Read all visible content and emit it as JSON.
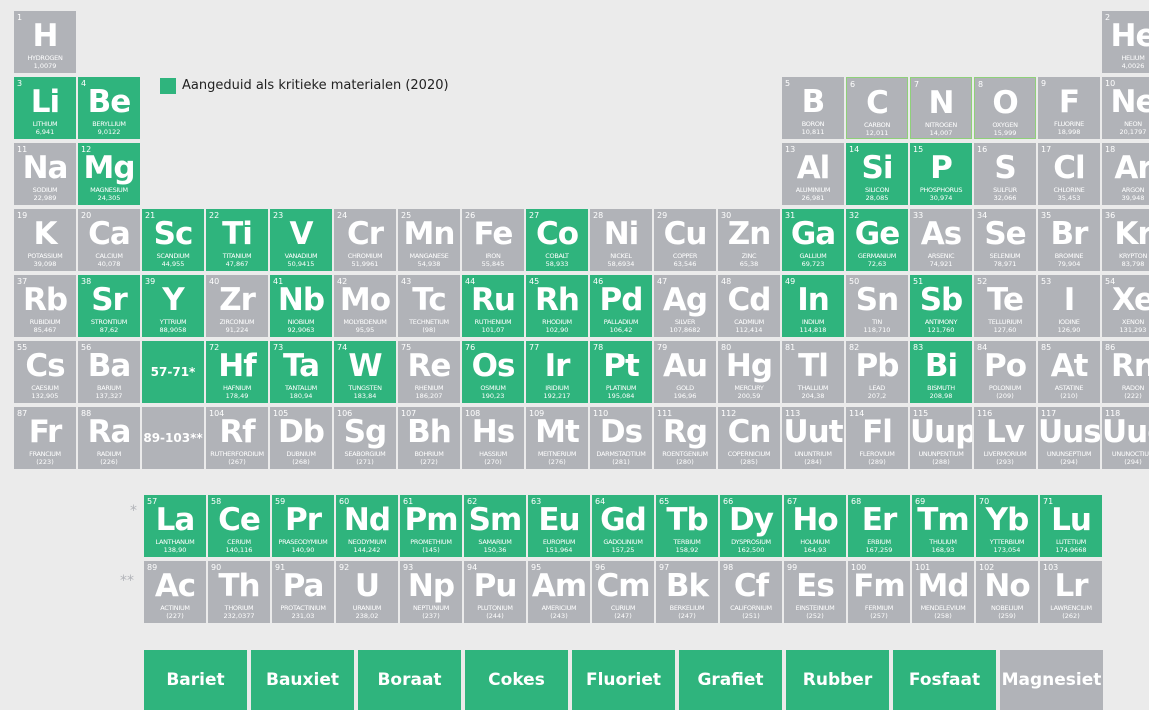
{
  "legend": "Aangeduid als kritieke materialen (2020)",
  "lanthanide_label": "57-71*",
  "actinide_label": "89-103**",
  "lanthanide_star": "*",
  "actinide_star": "**",
  "critical": [
    3,
    4,
    12,
    14,
    15,
    21,
    22,
    23,
    27,
    31,
    32,
    38,
    39,
    41,
    44,
    45,
    46,
    49,
    51,
    72,
    73,
    74,
    76,
    77,
    78,
    83,
    57,
    58,
    59,
    60,
    61,
    62,
    63,
    64,
    65,
    66,
    67,
    68,
    69,
    70,
    71
  ],
  "outlined": [
    6,
    7,
    8
  ],
  "elements": [
    [
      1,
      "H",
      "HYDROGEN",
      "1,0079"
    ],
    [
      2,
      "He",
      "HELIUM",
      "4,0026"
    ],
    [
      3,
      "Li",
      "LITHIUM",
      "6,941"
    ],
    [
      4,
      "Be",
      "BERYLLIUM",
      "9,0122"
    ],
    [
      5,
      "B",
      "BORON",
      "10,811"
    ],
    [
      6,
      "C",
      "CARBON",
      "12,011"
    ],
    [
      7,
      "N",
      "NITROGEN",
      "14,007"
    ],
    [
      8,
      "O",
      "OXYGEN",
      "15,999"
    ],
    [
      9,
      "F",
      "FLUORINE",
      "18,998"
    ],
    [
      10,
      "Ne",
      "NEON",
      "20,1797"
    ],
    [
      11,
      "Na",
      "SODIUM",
      "22,989"
    ],
    [
      12,
      "Mg",
      "MAGNESIUM",
      "24,305"
    ],
    [
      13,
      "Al",
      "ALUMINIUM",
      "26,981"
    ],
    [
      14,
      "Si",
      "SILICON",
      "28,085"
    ],
    [
      15,
      "P",
      "PHOSPHORUS",
      "30,974"
    ],
    [
      16,
      "S",
      "SULFUR",
      "32,066"
    ],
    [
      17,
      "Cl",
      "CHLORINE",
      "35,453"
    ],
    [
      18,
      "Ar",
      "ARGON",
      "39,948"
    ],
    [
      19,
      "K",
      "POTASSIUM",
      "39,098"
    ],
    [
      20,
      "Ca",
      "CALCIUM",
      "40,078"
    ],
    [
      21,
      "Sc",
      "SCANDIUM",
      "44,955"
    ],
    [
      22,
      "Ti",
      "TITANIUM",
      "47,867"
    ],
    [
      23,
      "V",
      "VANADIUM",
      "50,9415"
    ],
    [
      24,
      "Cr",
      "CHROMIUM",
      "51,9961"
    ],
    [
      25,
      "Mn",
      "MANGANESE",
      "54,938"
    ],
    [
      26,
      "Fe",
      "IRON",
      "55,845"
    ],
    [
      27,
      "Co",
      "COBALT",
      "58,933"
    ],
    [
      28,
      "Ni",
      "NICKEL",
      "58,6934"
    ],
    [
      29,
      "Cu",
      "COPPER",
      "63,546"
    ],
    [
      30,
      "Zn",
      "ZINC",
      "65,38"
    ],
    [
      31,
      "Ga",
      "GALLIUM",
      "69,723"
    ],
    [
      32,
      "Ge",
      "GERMANIUM",
      "72,63"
    ],
    [
      33,
      "As",
      "ARSENIC",
      "74,921"
    ],
    [
      34,
      "Se",
      "SELENIUM",
      "78,971"
    ],
    [
      35,
      "Br",
      "BROMINE",
      "79,904"
    ],
    [
      36,
      "Kr",
      "KRYPTON",
      "83,798"
    ],
    [
      37,
      "Rb",
      "RUBIDIUM",
      "85,467"
    ],
    [
      38,
      "Sr",
      "STRONTIUM",
      "87,62"
    ],
    [
      39,
      "Y",
      "YTTRIUM",
      "88,9058"
    ],
    [
      40,
      "Zr",
      "ZIRCONIUM",
      "91,224"
    ],
    [
      41,
      "Nb",
      "NIOBIUM",
      "92,9063"
    ],
    [
      42,
      "Mo",
      "MOLYBDENUM",
      "95,95"
    ],
    [
      43,
      "Tc",
      "TECHNETIUM",
      "(98)"
    ],
    [
      44,
      "Ru",
      "RUTHENIUM",
      "101,07"
    ],
    [
      45,
      "Rh",
      "RHODIUM",
      "102,90"
    ],
    [
      46,
      "Pd",
      "PALLADIUM",
      "106,42"
    ],
    [
      47,
      "Ag",
      "SILVER",
      "107,8682"
    ],
    [
      48,
      "Cd",
      "CADMIUM",
      "112,414"
    ],
    [
      49,
      "In",
      "INDIUM",
      "114,818"
    ],
    [
      50,
      "Sn",
      "TIN",
      "118,710"
    ],
    [
      51,
      "Sb",
      "ANTIMONY",
      "121,760"
    ],
    [
      52,
      "Te",
      "TELLURIUM",
      "127,60"
    ],
    [
      53,
      "I",
      "IODINE",
      "126,90"
    ],
    [
      54,
      "Xe",
      "XENON",
      "131,293"
    ],
    [
      55,
      "Cs",
      "CAESIUM",
      "132,905"
    ],
    [
      56,
      "Ba",
      "BARIUM",
      "137,327"
    ],
    [
      57,
      "La",
      "LANTHANUM",
      "138,90"
    ],
    [
      58,
      "Ce",
      "CERIUM",
      "140,116"
    ],
    [
      59,
      "Pr",
      "PRASEODYMIUM",
      "140,90"
    ],
    [
      60,
      "Nd",
      "NEODYMIUM",
      "144,242"
    ],
    [
      61,
      "Pm",
      "PROMETHIUM",
      "(145)"
    ],
    [
      62,
      "Sm",
      "SAMARIUM",
      "150,36"
    ],
    [
      63,
      "Eu",
      "EUROPIUM",
      "151,964"
    ],
    [
      64,
      "Gd",
      "GADOLINIUM",
      "157,25"
    ],
    [
      65,
      "Tb",
      "TERBIUM",
      "158,92"
    ],
    [
      66,
      "Dy",
      "DYSPROSIUM",
      "162,500"
    ],
    [
      67,
      "Ho",
      "HOLMIUM",
      "164,93"
    ],
    [
      68,
      "Er",
      "ERBIUM",
      "167,259"
    ],
    [
      69,
      "Tm",
      "THULIUM",
      "168,93"
    ],
    [
      70,
      "Yb",
      "YTTERBIUM",
      "173,054"
    ],
    [
      71,
      "Lu",
      "LUTETIUM",
      "174,9668"
    ],
    [
      72,
      "Hf",
      "HAFNIUM",
      "178,49"
    ],
    [
      73,
      "Ta",
      "TANTALUM",
      "180,94"
    ],
    [
      74,
      "W",
      "TUNGSTEN",
      "183,84"
    ],
    [
      75,
      "Re",
      "RHENIUM",
      "186,207"
    ],
    [
      76,
      "Os",
      "OSMIUM",
      "190,23"
    ],
    [
      77,
      "Ir",
      "IRIDIUM",
      "192,217"
    ],
    [
      78,
      "Pt",
      "PLATINUM",
      "195,084"
    ],
    [
      79,
      "Au",
      "GOLD",
      "196,96"
    ],
    [
      80,
      "Hg",
      "MERCURY",
      "200,59"
    ],
    [
      81,
      "Tl",
      "THALLIUM",
      "204,38"
    ],
    [
      82,
      "Pb",
      "LEAD",
      "207,2"
    ],
    [
      83,
      "Bi",
      "BISMUTH",
      "208,98"
    ],
    [
      84,
      "Po",
      "POLONIUM",
      "(209)"
    ],
    [
      85,
      "At",
      "ASTATINE",
      "(210)"
    ],
    [
      86,
      "Rn",
      "RADON",
      "(222)"
    ],
    [
      87,
      "Fr",
      "FRANCIUM",
      "(223)"
    ],
    [
      88,
      "Ra",
      "RADIUM",
      "(226)"
    ],
    [
      89,
      "Ac",
      "ACTINIUM",
      "(227)"
    ],
    [
      90,
      "Th",
      "THORIUM",
      "232,0377"
    ],
    [
      91,
      "Pa",
      "PROTACTINIUM",
      "231,03"
    ],
    [
      92,
      "U",
      "URANIUM",
      "238,02"
    ],
    [
      93,
      "Np",
      "NEPTUNIUM",
      "(237)"
    ],
    [
      94,
      "Pu",
      "PLUTONIUM",
      "(244)"
    ],
    [
      95,
      "Am",
      "AMERICIUM",
      "(243)"
    ],
    [
      96,
      "Cm",
      "CURIUM",
      "(247)"
    ],
    [
      97,
      "Bk",
      "BERKELIUM",
      "(247)"
    ],
    [
      98,
      "Cf",
      "CALIFORNIUM",
      "(251)"
    ],
    [
      99,
      "Es",
      "EINSTEINIUM",
      "(252)"
    ],
    [
      100,
      "Fm",
      "FERMIUM",
      "(257)"
    ],
    [
      101,
      "Md",
      "MENDELEVIUM",
      "(258)"
    ],
    [
      102,
      "No",
      "NOBELIUM",
      "(259)"
    ],
    [
      103,
      "Lr",
      "LAWRENCIUM",
      "(262)"
    ],
    [
      104,
      "Rf",
      "RUTHERFORDIUM",
      "(267)"
    ],
    [
      105,
      "Db",
      "DUBNIUM",
      "(268)"
    ],
    [
      106,
      "Sg",
      "SEABORGIUM",
      "(271)"
    ],
    [
      107,
      "Bh",
      "BOHRIUM",
      "(272)"
    ],
    [
      108,
      "Hs",
      "HASSIUM",
      "(270)"
    ],
    [
      109,
      "Mt",
      "MEITNERIUM",
      "(276)"
    ],
    [
      110,
      "Ds",
      "DARMSTADTIUM",
      "(281)"
    ],
    [
      111,
      "Rg",
      "ROENTGENIUM",
      "(280)"
    ],
    [
      112,
      "Cn",
      "COPERNICIUM",
      "(285)"
    ],
    [
      113,
      "Uut",
      "UNUNTRIUM",
      "(284)"
    ],
    [
      114,
      "Fl",
      "FLEROVIUM",
      "(289)"
    ],
    [
      115,
      "Uup",
      "UNUNPENTIUM",
      "(288)"
    ],
    [
      116,
      "Lv",
      "LIVERMORIUM",
      "(293)"
    ],
    [
      117,
      "Uus",
      "UNUNSEPTIUM",
      "(294)"
    ],
    [
      118,
      "Uuo",
      "UNUNOCTIUM",
      "(294)"
    ]
  ],
  "materials": [
    {
      "label": "Bariet",
      "critical": true
    },
    {
      "label": "Bauxiet",
      "critical": true
    },
    {
      "label": "Boraat",
      "critical": true
    },
    {
      "label": "Cokes",
      "critical": true
    },
    {
      "label": "Fluoriet",
      "critical": true
    },
    {
      "label": "Grafiet",
      "critical": true
    },
    {
      "label": "Rubber",
      "critical": true
    },
    {
      "label": "Fosfaat",
      "critical": true
    },
    {
      "label": "Magnesiet",
      "critical": false
    }
  ]
}
